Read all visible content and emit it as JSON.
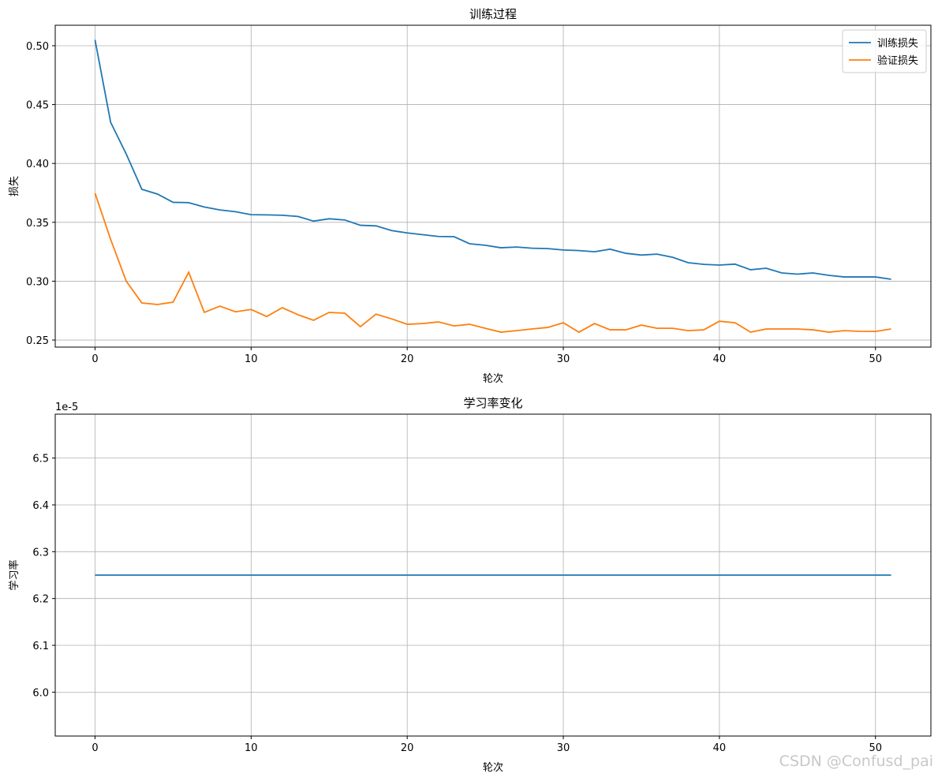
{
  "chart_data": [
    {
      "type": "line",
      "title": "训练过程",
      "xlabel": "轮次",
      "ylabel": "损失",
      "x": [
        0,
        1,
        2,
        3,
        4,
        5,
        6,
        7,
        8,
        9,
        10,
        11,
        12,
        13,
        14,
        15,
        16,
        17,
        18,
        19,
        20,
        21,
        22,
        23,
        24,
        25,
        26,
        27,
        28,
        29,
        30,
        31,
        32,
        33,
        34,
        35,
        36,
        37,
        38,
        39,
        40,
        41,
        42,
        43,
        44,
        45,
        46,
        47,
        48,
        49,
        50,
        51
      ],
      "series": [
        {
          "name": "训练损失",
          "color": "#1f77b4",
          "values": [
            0.505,
            0.435,
            0.408,
            0.378,
            0.374,
            0.367,
            0.3667,
            0.363,
            0.3605,
            0.359,
            0.3565,
            0.3563,
            0.356,
            0.355,
            0.351,
            0.353,
            0.352,
            0.3475,
            0.347,
            0.343,
            0.341,
            0.3395,
            0.338,
            0.3378,
            0.3318,
            0.3305,
            0.3284,
            0.329,
            0.328,
            0.3277,
            0.3265,
            0.326,
            0.325,
            0.3272,
            0.3237,
            0.3222,
            0.323,
            0.3203,
            0.3157,
            0.3143,
            0.3137,
            0.3145,
            0.3097,
            0.311,
            0.307,
            0.306,
            0.307,
            0.305,
            0.3036,
            0.3036,
            0.3036,
            0.3016
          ]
        },
        {
          "name": "验证损失",
          "color": "#ff7f0e",
          "values": [
            0.3747,
            0.3355,
            0.3,
            0.2815,
            0.2802,
            0.2822,
            0.3076,
            0.2735,
            0.2788,
            0.274,
            0.276,
            0.27,
            0.2775,
            0.2715,
            0.2668,
            0.2735,
            0.2728,
            0.2614,
            0.272,
            0.268,
            0.2634,
            0.264,
            0.2654,
            0.262,
            0.2634,
            0.26,
            0.2567,
            0.258,
            0.2594,
            0.2607,
            0.2647,
            0.2567,
            0.264,
            0.2587,
            0.2587,
            0.2627,
            0.26,
            0.26,
            0.258,
            0.2587,
            0.266,
            0.2647,
            0.2567,
            0.2594,
            0.2594,
            0.2594,
            0.2587,
            0.2567,
            0.258,
            0.2574,
            0.2573,
            0.2594
          ]
        }
      ],
      "xlim": [
        -2.55,
        53.55
      ],
      "xticks": [
        0,
        10,
        20,
        30,
        40,
        50
      ],
      "ylim": [
        0.244,
        0.5174
      ],
      "yticks": [
        {
          "value": 0.25,
          "label": "0.25"
        },
        {
          "value": 0.3,
          "label": "0.30"
        },
        {
          "value": 0.35,
          "label": "0.35"
        },
        {
          "value": 0.4,
          "label": "0.40"
        },
        {
          "value": 0.45,
          "label": "0.45"
        },
        {
          "value": 0.5,
          "label": "0.50"
        }
      ],
      "grid": true,
      "legend": "upper right"
    },
    {
      "type": "line",
      "title": "学习率变化",
      "xlabel": "轮次",
      "ylabel": "学习率",
      "y_offset_label": "1e-5",
      "x": [
        0,
        1,
        2,
        3,
        4,
        5,
        6,
        7,
        8,
        9,
        10,
        11,
        12,
        13,
        14,
        15,
        16,
        17,
        18,
        19,
        20,
        21,
        22,
        23,
        24,
        25,
        26,
        27,
        28,
        29,
        30,
        31,
        32,
        33,
        34,
        35,
        36,
        37,
        38,
        39,
        40,
        41,
        42,
        43,
        44,
        45,
        46,
        47,
        48,
        49,
        50,
        51
      ],
      "series": [
        {
          "color": "#1f77b4",
          "values": [
            6.25,
            6.25,
            6.25,
            6.25,
            6.25,
            6.25,
            6.25,
            6.25,
            6.25,
            6.25,
            6.25,
            6.25,
            6.25,
            6.25,
            6.25,
            6.25,
            6.25,
            6.25,
            6.25,
            6.25,
            6.25,
            6.25,
            6.25,
            6.25,
            6.25,
            6.25,
            6.25,
            6.25,
            6.25,
            6.25,
            6.25,
            6.25,
            6.25,
            6.25,
            6.25,
            6.25,
            6.25,
            6.25,
            6.25,
            6.25,
            6.25,
            6.25,
            6.25,
            6.25,
            6.25,
            6.25,
            6.25,
            6.25,
            6.25,
            6.25,
            6.25,
            6.25
          ]
        }
      ],
      "xlim": [
        -2.55,
        53.55
      ],
      "xticks": [
        0,
        10,
        20,
        30,
        40,
        50
      ],
      "ylim": [
        5.90625,
        6.59375
      ],
      "yticks": [
        {
          "value": 6.0,
          "label": "6.0"
        },
        {
          "value": 6.1,
          "label": "6.1"
        },
        {
          "value": 6.2,
          "label": "6.2"
        },
        {
          "value": 6.3,
          "label": "6.3"
        },
        {
          "value": 6.4,
          "label": "6.4"
        },
        {
          "value": 6.5,
          "label": "6.5"
        }
      ],
      "grid": true
    }
  ],
  "watermark": "CSDN @Confusd_pai"
}
